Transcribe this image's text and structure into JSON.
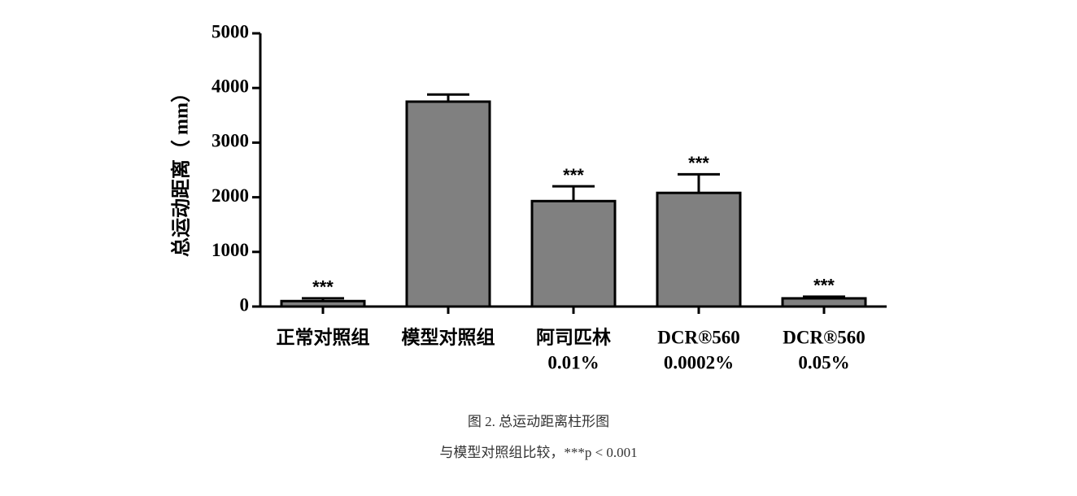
{
  "chart_data": {
    "type": "bar",
    "ylabel": "总运动距离（ mm）",
    "categories": [
      [
        "正常对照组"
      ],
      [
        "模型对照组"
      ],
      [
        "阿司匹林",
        "0.01%"
      ],
      [
        "DCR®560",
        "0.0002%"
      ],
      [
        "DCR®560",
        "0.05%"
      ]
    ],
    "values": [
      100,
      3750,
      1930,
      2080,
      150
    ],
    "errors": [
      50,
      130,
      270,
      340,
      30
    ],
    "annotations": [
      "***",
      null,
      "***",
      "***",
      "***"
    ],
    "color": "#808080",
    "ylim": [
      0,
      5000
    ],
    "yticks": [
      0,
      1000,
      2000,
      3000,
      4000,
      5000
    ],
    "caption": [
      "图 2. 总运动距离柱形图",
      "与模型对照组比较，***p < 0.001"
    ]
  }
}
